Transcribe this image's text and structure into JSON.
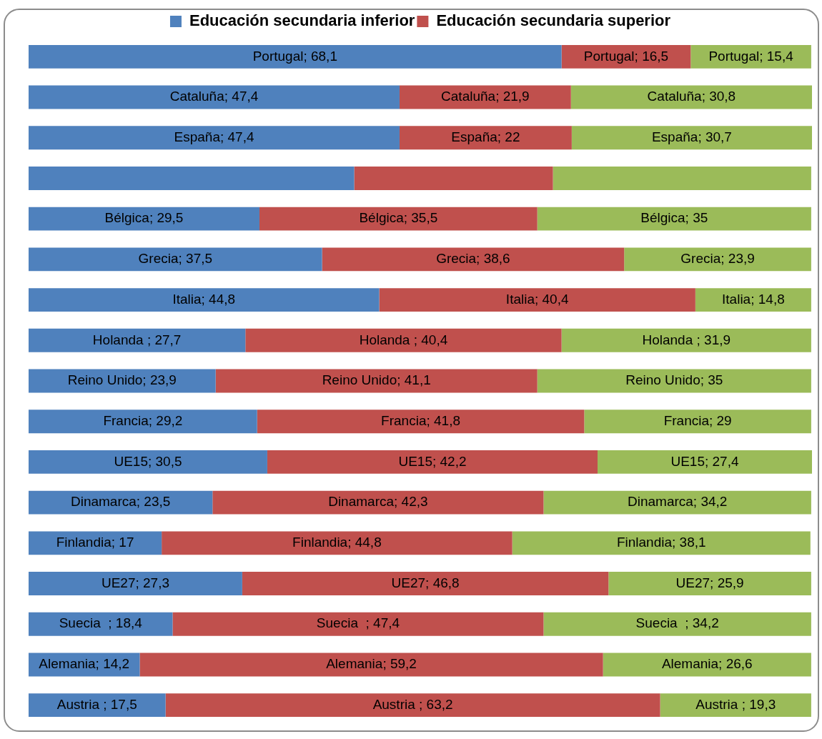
{
  "chart_data": {
    "type": "bar",
    "orientation": "horizontal",
    "stacked": true,
    "categories": [
      null,
      null,
      null,
      null,
      null,
      null,
      null,
      null,
      null,
      null,
      null,
      null,
      null,
      null,
      null,
      null,
      null
    ],
    "xlim": [
      0,
      100.1
    ],
    "tick_labels": false,
    "legend": "top",
    "series": [
      {
        "name": "Educación secundaria inferior",
        "color": "#4f81bd",
        "values": [
          68.1,
          47.4,
          47.4,
          41.6,
          29.5,
          37.5,
          44.8,
          27.7,
          23.9,
          29.2,
          30.5,
          23.5,
          17,
          27.3,
          18.4,
          14.2,
          17.5
        ],
        "value_labels": [
          "Portugal; 68,1",
          "Cataluña; 47,4",
          "España; 47,4",
          null,
          "Bélgica; 29,5",
          "Grecia; 37,5",
          "Italia; 44,8",
          "Holanda ; 27,7",
          "Reino Unido; 23,9",
          "Francia; 29,2",
          "UE15; 30,5",
          "Dinamarca; 23,5",
          "Finlandia; 17",
          "UE27; 27,3",
          "Suecia  ; 18,4",
          "Alemania; 14,2",
          "Austria ; 17,5"
        ]
      },
      {
        "name": "Educación secundaria superior",
        "color": "#c0504d",
        "values": [
          16.5,
          21.9,
          22,
          25.4,
          35.5,
          38.6,
          40.4,
          40.4,
          41.1,
          41.8,
          42.2,
          42.3,
          44.8,
          46.8,
          47.4,
          59.2,
          63.2
        ],
        "value_labels": [
          "Portugal; 16,5",
          "Cataluña; 21,9",
          "España; 22",
          null,
          "Bélgica; 35,5",
          "Grecia; 38,6",
          "Italia; 40,4",
          "Holanda ; 40,4",
          "Reino Unido; 41,1",
          "Francia; 41,8",
          "UE15; 42,2",
          "Dinamarca; 42,3",
          "Finlandia; 44,8",
          "UE27; 46,8",
          "Suecia  ; 47,4",
          "Alemania; 59,2",
          "Austria ; 63,2"
        ]
      },
      {
        "color": "#9bbb59",
        "values": [
          15.4,
          30.8,
          30.7,
          33.0,
          35,
          23.9,
          14.8,
          31.9,
          35,
          29,
          27.4,
          34.2,
          38.1,
          25.9,
          34.2,
          26.6,
          19.3
        ],
        "value_labels": [
          "Portugal; 15,4",
          "Cataluña; 30,8",
          "España; 30,7",
          null,
          "Bélgica; 35",
          "Grecia; 23,9",
          "Italia; 14,8",
          "Holanda ; 31,9",
          "Reino Unido; 35",
          "Francia; 29",
          "UE15; 27,4",
          "Dinamarca; 34,2",
          "Finlandia; 38,1",
          "UE27; 25,9",
          "Suecia  ; 34,2",
          "Alemania; 26,6",
          "Austria ; 19,3"
        ]
      }
    ]
  }
}
